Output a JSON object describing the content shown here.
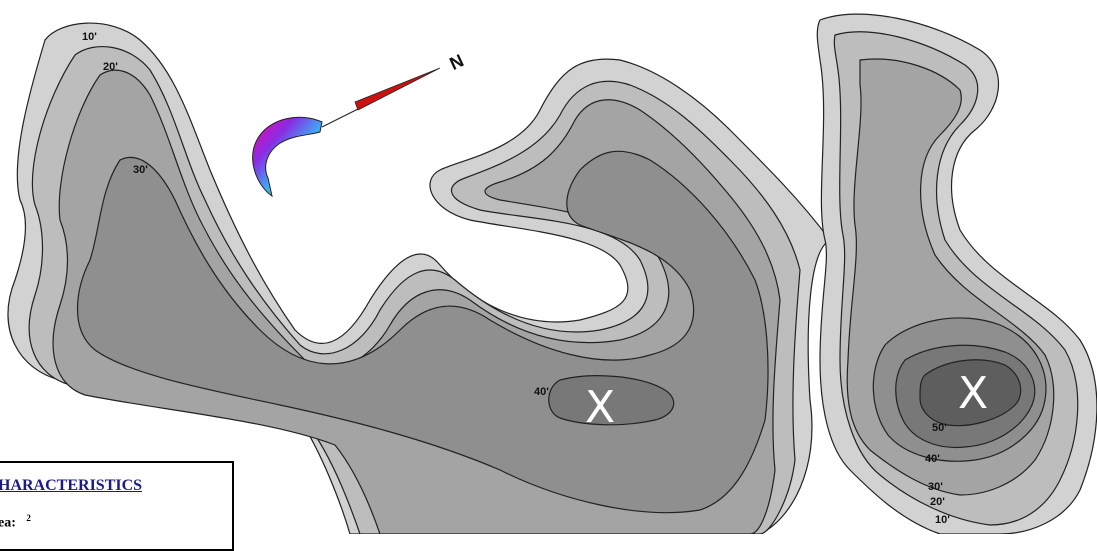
{
  "map": {
    "depth_labels": [
      "10'",
      "20'",
      "30'",
      "40'",
      "50'",
      "40'",
      "30'",
      "20'",
      "10'"
    ],
    "marker_symbol": "X",
    "compass_letter": "N",
    "colors": {
      "outline": "#222222",
      "shore": "#d0d0d0",
      "depth_10": "#bbbbbb",
      "depth_20": "#a3a3a3",
      "depth_30": "#8e8e8e",
      "depth_40": "#777777",
      "depth_50": "#5c5c5c",
      "compass_needle": "#cc1111"
    }
  },
  "legend": {
    "title": "HARACTERISTICS",
    "first_line_fragment": "ea:",
    "superscript": "2"
  }
}
